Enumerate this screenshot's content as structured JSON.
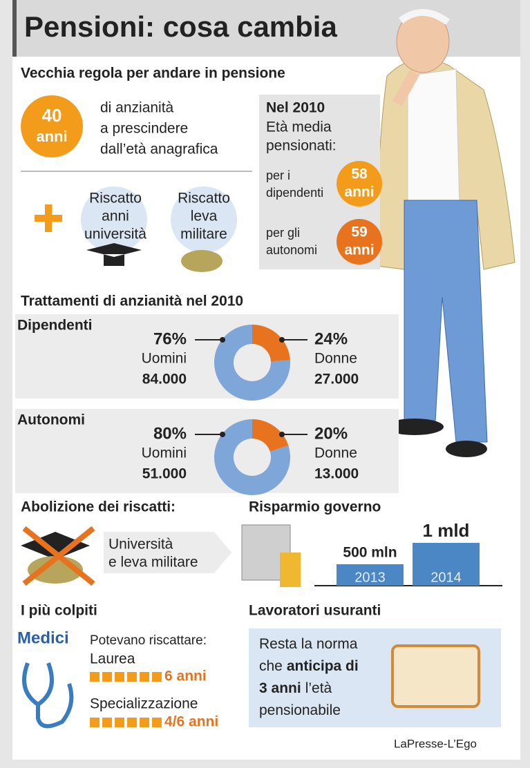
{
  "title": "Pensioni: cosa cambia",
  "old_rule": {
    "heading": "Vecchia regola per andare in pensione",
    "badge": {
      "number": "40",
      "unit": "anni"
    },
    "description": [
      "di anzianità",
      "a prescindere",
      "dall’età anagrafica"
    ],
    "riscatti": [
      [
        "Riscatto",
        "anni",
        "università"
      ],
      [
        "Riscatto",
        "leva",
        "militare"
      ]
    ]
  },
  "avg_age_2010": {
    "title": "Nel 2010",
    "subtitle": [
      "Età media",
      "pensionati:"
    ],
    "groups": [
      {
        "label": [
          "per i",
          "dipendenti"
        ],
        "age": "58",
        "unit": "anni"
      },
      {
        "label": [
          "per gli",
          "autonomi"
        ],
        "age": "59",
        "unit": "anni"
      }
    ]
  },
  "treatments": {
    "heading": "Trattamenti di anzianità nel 2010",
    "groups": [
      {
        "name": "Dipendenti",
        "labels": [
          "Uomini",
          "Donne"
        ],
        "values": [
          76,
          24
        ],
        "value_labels": [
          "76%",
          "24%"
        ],
        "counts": [
          "84.000",
          "27.000"
        ],
        "colors": [
          "#7ea6d8",
          "#e8731f"
        ]
      },
      {
        "name": "Autonomi",
        "labels": [
          "Uomini",
          "Donne"
        ],
        "values": [
          80,
          20
        ],
        "value_labels": [
          "80%",
          "20%"
        ],
        "counts": [
          "51.000",
          "13.000"
        ],
        "colors": [
          "#7ea6d8",
          "#e8731f"
        ]
      }
    ]
  },
  "abolition": {
    "heading": "Abolizione dei riscatti:",
    "text": [
      "Università",
      "e leva militare"
    ]
  },
  "savings": {
    "type": "bar",
    "heading": "Risparmio governo",
    "categories": [
      "2013",
      "2014"
    ],
    "values": [
      500000000,
      1000000000
    ],
    "value_labels": [
      "500 mln",
      "1 mld"
    ],
    "color": "#4b86c5"
  },
  "most_hit": {
    "heading": "I più colpiti",
    "group": "Medici",
    "intro": "Potevano riscattare:",
    "items": [
      {
        "label": "Laurea",
        "value": "6 anni"
      },
      {
        "label": "Specializzazione",
        "value": "4/6 anni"
      }
    ]
  },
  "usurious": {
    "heading": "Lavoratori usuranti",
    "lines": [
      [
        "Resta la norma"
      ],
      [
        "che",
        "anticipa di"
      ],
      [
        "3 anni",
        "l’età"
      ],
      [
        "pensionabile"
      ]
    ]
  },
  "credit": "LaPresse-L’Ego"
}
